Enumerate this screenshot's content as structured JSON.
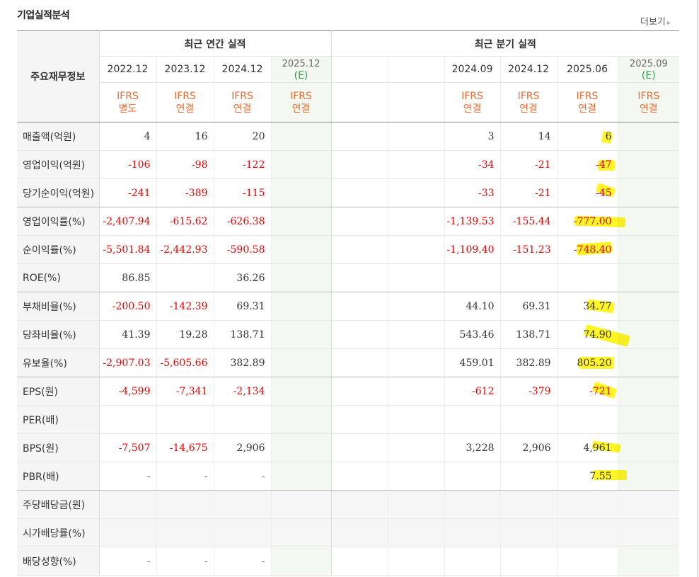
{
  "header": {
    "title": "기업실적분석",
    "more_label": "더보기",
    "more_icon": "chevron-right-icon"
  },
  "table": {
    "row_header_label": "주요재무정보",
    "annual_group": "최근 연간 실적",
    "quarter_group": "최근 분기 실적",
    "annual_periods": [
      {
        "period": "2022.12",
        "est": "",
        "ifrs": "IFRS",
        "basis": "별도"
      },
      {
        "period": "2023.12",
        "est": "",
        "ifrs": "IFRS",
        "basis": "연결"
      },
      {
        "period": "2024.12",
        "est": "",
        "ifrs": "IFRS",
        "basis": "연결"
      },
      {
        "period": "2025.12",
        "est": "(E)",
        "ifrs": "IFRS",
        "basis": "연결"
      }
    ],
    "quarter_periods": [
      {
        "period": "",
        "est": "",
        "ifrs": "",
        "basis": ""
      },
      {
        "period": "",
        "est": "",
        "ifrs": "",
        "basis": ""
      },
      {
        "period": "2024.09",
        "est": "",
        "ifrs": "IFRS",
        "basis": "연결"
      },
      {
        "period": "2024.12",
        "est": "",
        "ifrs": "IFRS",
        "basis": "연결"
      },
      {
        "period": "2025.06",
        "est": "",
        "ifrs": "IFRS",
        "basis": "연결"
      },
      {
        "period": "2025.09",
        "est": "(E)",
        "ifrs": "IFRS",
        "basis": "연결"
      }
    ],
    "rows": [
      {
        "label": "매출액(억원)",
        "annual": [
          "4",
          "16",
          "20",
          ""
        ],
        "quarter": [
          "",
          "",
          "3",
          "14",
          "6",
          ""
        ],
        "group_end": false
      },
      {
        "label": "영업이익(억원)",
        "annual": [
          "-106",
          "-98",
          "-122",
          ""
        ],
        "quarter": [
          "",
          "",
          "-34",
          "-21",
          "-47",
          ""
        ],
        "group_end": false
      },
      {
        "label": "당기순이익(억원)",
        "annual": [
          "-241",
          "-389",
          "-115",
          ""
        ],
        "quarter": [
          "",
          "",
          "-33",
          "-21",
          "-45",
          ""
        ],
        "group_end": true
      },
      {
        "label": "영업이익률(%)",
        "annual": [
          "-2,407.94",
          "-615.62",
          "-626.38",
          ""
        ],
        "quarter": [
          "",
          "",
          "-1,139.53",
          "-155.44",
          "-777.00",
          ""
        ],
        "group_end": false
      },
      {
        "label": "순이익률(%)",
        "annual": [
          "-5,501.84",
          "-2,442.93",
          "-590.58",
          ""
        ],
        "quarter": [
          "",
          "",
          "-1,109.40",
          "-151.23",
          "-748.40",
          ""
        ],
        "group_end": false
      },
      {
        "label": "ROE(%)",
        "annual": [
          "86.85",
          "",
          "36.26",
          ""
        ],
        "quarter": [
          "",
          "",
          "",
          "",
          "",
          ""
        ],
        "group_end": true
      },
      {
        "label": "부채비율(%)",
        "annual": [
          "-200.50",
          "-142.39",
          "69.31",
          ""
        ],
        "quarter": [
          "",
          "",
          "44.10",
          "69.31",
          "34.77",
          ""
        ],
        "group_end": false
      },
      {
        "label": "당좌비율(%)",
        "annual": [
          "41.39",
          "19.28",
          "138.71",
          ""
        ],
        "quarter": [
          "",
          "",
          "543.46",
          "138.71",
          "74.90",
          ""
        ],
        "group_end": false
      },
      {
        "label": "유보율(%)",
        "annual": [
          "-2,907.03",
          "-5,605.66",
          "382.89",
          ""
        ],
        "quarter": [
          "",
          "",
          "459.01",
          "382.89",
          "805.20",
          ""
        ],
        "group_end": true
      },
      {
        "label": "EPS(원)",
        "annual": [
          "-4,599",
          "-7,341",
          "-2,134",
          ""
        ],
        "quarter": [
          "",
          "",
          "-612",
          "-379",
          "-721",
          ""
        ],
        "group_end": false
      },
      {
        "label": "PER(배)",
        "annual": [
          "",
          "",
          "",
          ""
        ],
        "quarter": [
          "",
          "",
          "",
          "",
          "",
          ""
        ],
        "group_end": false
      },
      {
        "label": "BPS(원)",
        "annual": [
          "-7,507",
          "-14,675",
          "2,906",
          ""
        ],
        "quarter": [
          "",
          "",
          "3,228",
          "2,906",
          "4,961",
          ""
        ],
        "group_end": false
      },
      {
        "label": "PBR(배)",
        "annual": [
          "-",
          "-",
          "-",
          ""
        ],
        "quarter": [
          "",
          "",
          "",
          "",
          "7.55",
          ""
        ],
        "group_end": true
      },
      {
        "label": "주당배당금(원)",
        "annual": [
          "",
          "",
          "",
          ""
        ],
        "quarter": [
          "",
          "",
          "",
          "",
          "",
          ""
        ],
        "group_end": false,
        "shaded": true
      },
      {
        "label": "시가배당률(%)",
        "annual": [
          "",
          "",
          "",
          ""
        ],
        "quarter": [
          "",
          "",
          "",
          "",
          "",
          ""
        ],
        "group_end": false,
        "shaded": true
      },
      {
        "label": "배당성향(%)",
        "annual": [
          "-",
          "-",
          "-",
          ""
        ],
        "quarter": [
          "",
          "",
          "",
          "",
          "",
          ""
        ],
        "group_end": false
      }
    ]
  },
  "colors": {
    "negative": "#e00000",
    "ifrs": "#ee6a2f",
    "estimate": "#2e9e4e",
    "highlight": "#fff200"
  }
}
